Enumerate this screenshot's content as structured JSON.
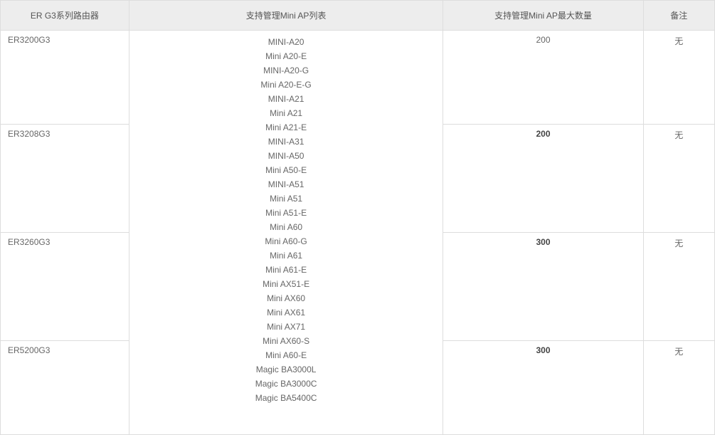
{
  "table": {
    "columns": [
      {
        "key": "router",
        "label": "ER G3系列路由器",
        "width_pct": 18,
        "align": "left"
      },
      {
        "key": "aplist",
        "label": "支持管理Mini AP列表",
        "width_pct": 44,
        "align": "center"
      },
      {
        "key": "max",
        "label": "支持管理Mini AP最大数量",
        "width_pct": 28,
        "align": "center"
      },
      {
        "key": "note",
        "label": "备注",
        "width_pct": 10,
        "align": "center"
      }
    ],
    "header_bg": "#ededed",
    "header_fontsize": 12,
    "body_fontsize": 12,
    "border_color": "#dddddd",
    "text_color": "#666666",
    "ap_list": [
      "MINI-A20",
      "Mini A20-E",
      "MINI-A20-G",
      "Mini A20-E-G",
      "MINI-A21",
      "Mini A21",
      "Mini A21-E",
      "MINI-A31",
      "MINI-A50",
      "Mini A50-E",
      "MINI-A51",
      "Mini A51",
      "Mini A51-E",
      "Mini A60",
      "Mini A60-G",
      "Mini A61",
      "Mini A61-E",
      "Mini AX51-E",
      "Mini AX60",
      "Mini AX61",
      "Mini AX71",
      "Mini AX60-S",
      "Mini A60-E",
      "Magic BA3000L",
      "Magic BA3000C",
      "Magic BA5400C"
    ],
    "rows": [
      {
        "router": "ER3200G3",
        "max": "200",
        "note": "无",
        "max_bold": false
      },
      {
        "router": "ER3208G3",
        "max": "200",
        "note": "无",
        "max_bold": true
      },
      {
        "router": "ER3260G3",
        "max": "300",
        "note": "无",
        "max_bold": true
      },
      {
        "router": "ER5200G3",
        "max": "300",
        "note": "无",
        "max_bold": true
      }
    ],
    "row_ap_spans": [
      6,
      7,
      7,
      6
    ]
  }
}
